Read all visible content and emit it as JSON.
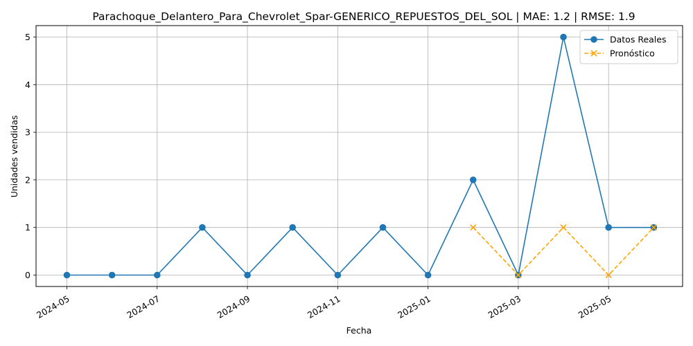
{
  "chart_data": {
    "type": "line",
    "title": "Parachoque_Delantero_Para_Chevrolet_Spar-GENERICO_REPUESTOS_DEL_SOL | MAE: 1.2 | RMSE: 1.9",
    "xlabel": "Fecha",
    "ylabel": "Unidades vendidas",
    "ylim": [
      -0.25,
      5.25
    ],
    "y_ticks": [
      0,
      1,
      2,
      3,
      4,
      5
    ],
    "x_ticks": [
      "2024-05",
      "2024-07",
      "2024-09",
      "2024-11",
      "2025-01",
      "2025-03",
      "2025-05"
    ],
    "grid": true,
    "legend_position": "top-right",
    "series": [
      {
        "name": "Datos Reales",
        "color": "#1f77b4",
        "marker": "circle",
        "line": "solid",
        "x": [
          "2024-05",
          "2024-06",
          "2024-07",
          "2024-08",
          "2024-09",
          "2024-10",
          "2024-11",
          "2024-12",
          "2025-01",
          "2025-02",
          "2025-03",
          "2025-04",
          "2025-05",
          "2025-06"
        ],
        "values": [
          0,
          0,
          0,
          1,
          0,
          1,
          0,
          1,
          0,
          2,
          0,
          5,
          1,
          1
        ]
      },
      {
        "name": "Pronóstico",
        "color": "#ffa500",
        "marker": "x",
        "line": "dashed",
        "x": [
          "2025-02",
          "2025-03",
          "2025-04",
          "2025-05",
          "2025-06"
        ],
        "values": [
          1,
          0,
          1,
          0,
          1
        ]
      }
    ]
  }
}
